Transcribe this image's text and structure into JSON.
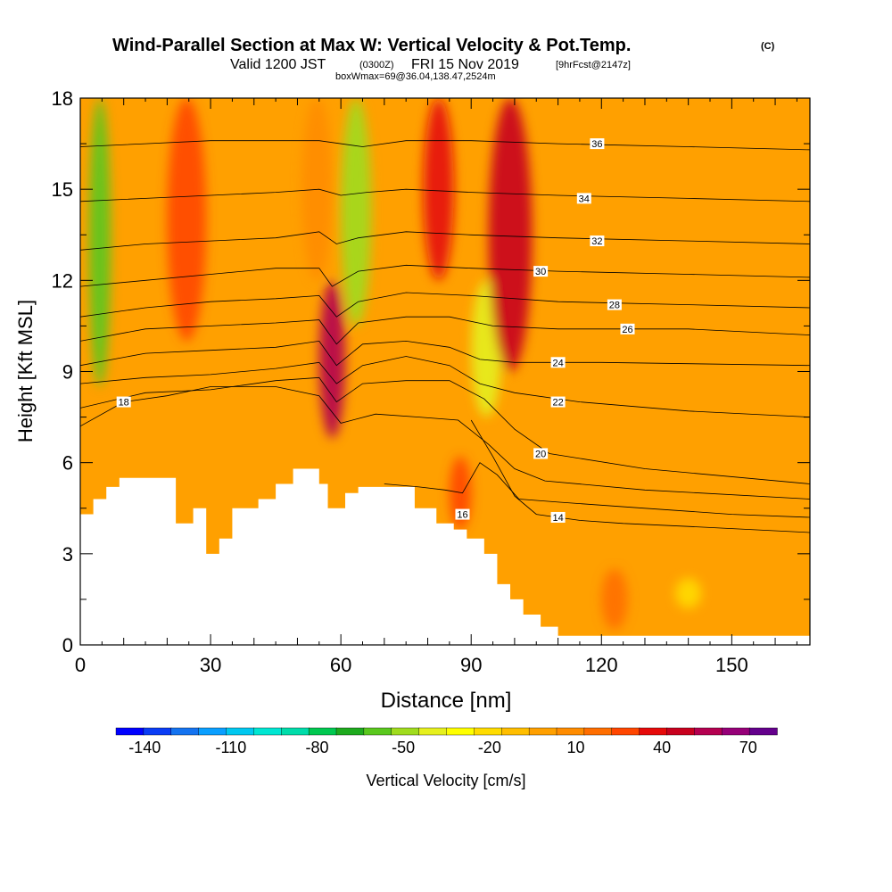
{
  "chart_data": {
    "type": "heatmap",
    "title": "Wind-Parallel Section at Max W: Vertical Velocity & Pot.Temp.",
    "title_mark": "(C)",
    "subtitle_parts": {
      "valid": "Valid 1200 JST",
      "utc": "(0300Z)",
      "date": "FRI 15 Nov 2019",
      "fcst": "[9hrFcst@2147z]"
    },
    "subtitle2": "boxWmax=69@36.04,138.47,2524m",
    "xlabel": "Distance [nm]",
    "ylabel": "Height [Kft MSL]",
    "xlim": [
      0,
      168
    ],
    "ylim": [
      0,
      18
    ],
    "x_ticks": [
      "0",
      "30",
      "60",
      "90",
      "120",
      "150"
    ],
    "x_tick_values": [
      0,
      30,
      60,
      90,
      120,
      150
    ],
    "y_ticks": [
      "0",
      "3",
      "6",
      "9",
      "12",
      "15",
      "18"
    ],
    "y_tick_values": [
      0,
      3,
      6,
      9,
      12,
      15,
      18
    ],
    "colorbar": {
      "label": "Vertical Velocity [cm/s]",
      "min": -150,
      "max": 80,
      "step": 10,
      "tick_labels": [
        "-140",
        "-110",
        "-80",
        "-50",
        "-20",
        "10",
        "40",
        "70"
      ],
      "tick_values": [
        -140,
        -110,
        -80,
        -50,
        -20,
        10,
        40,
        70
      ],
      "colors": [
        "#0000ff",
        "#0a3cf5",
        "#1473f0",
        "#0a9fff",
        "#00c8f0",
        "#00e6d2",
        "#00dcaa",
        "#00c850",
        "#1eaa1e",
        "#5ac81e",
        "#a0dc1e",
        "#e6f01e",
        "#ffff00",
        "#ffdc00",
        "#ffbe00",
        "#ffa000",
        "#ff8c00",
        "#ff6e00",
        "#ff4600",
        "#e60a0a",
        "#c8001e",
        "#b40050",
        "#960078",
        "#64008c"
      ]
    },
    "velocity_field": [
      {
        "x_range": [
          2,
          7
        ],
        "y_range": [
          8.5,
          18
        ],
        "value": -55
      },
      {
        "x_range": [
          20,
          29
        ],
        "y_range": [
          10,
          18
        ],
        "value": 35
      },
      {
        "x_range": [
          51,
          58
        ],
        "y_range": [
          12,
          18
        ],
        "value": 15
      },
      {
        "x_range": [
          55,
          61
        ],
        "y_range": [
          6.8,
          12
        ],
        "value": 65
      },
      {
        "x_range": [
          60,
          67
        ],
        "y_range": [
          10.5,
          18
        ],
        "value": -50
      },
      {
        "x_range": [
          79,
          86
        ],
        "y_range": [
          12,
          18
        ],
        "value": 40
      },
      {
        "x_range": [
          85,
          90
        ],
        "y_range": [
          3.8,
          6.2
        ],
        "value": 30
      },
      {
        "x_range": [
          90,
          97
        ],
        "y_range": [
          7.5,
          12
        ],
        "value": -40
      },
      {
        "x_range": [
          94,
          104
        ],
        "y_range": [
          9,
          18
        ],
        "value": 55
      },
      {
        "x_range": [
          120,
          126
        ],
        "y_range": [
          0.5,
          2.5
        ],
        "value": 20
      },
      {
        "x_range": [
          137,
          143
        ],
        "y_range": [
          1.2,
          2.2
        ],
        "value": -15
      }
    ],
    "terrain_height": [
      [
        0,
        4.3
      ],
      [
        3,
        4.8
      ],
      [
        6,
        5.2
      ],
      [
        9,
        5.5
      ],
      [
        20,
        5.5
      ],
      [
        22,
        4.0
      ],
      [
        26,
        4.5
      ],
      [
        29,
        3.0
      ],
      [
        32,
        3.5
      ],
      [
        35,
        4.5
      ],
      [
        41,
        4.8
      ],
      [
        45,
        5.3
      ],
      [
        49,
        5.8
      ],
      [
        55,
        5.3
      ],
      [
        57,
        4.5
      ],
      [
        61,
        5.0
      ],
      [
        64,
        5.2
      ],
      [
        74,
        5.2
      ],
      [
        77,
        4.5
      ],
      [
        82,
        4.0
      ],
      [
        86,
        3.8
      ],
      [
        89,
        3.5
      ],
      [
        93,
        3.0
      ],
      [
        96,
        2.0
      ],
      [
        99,
        1.5
      ],
      [
        102,
        1.0
      ],
      [
        106,
        0.6
      ],
      [
        110,
        0.3
      ],
      [
        168,
        0.3
      ]
    ],
    "theta_contours": [
      {
        "level": "14",
        "label_pos": [
          110,
          4.2
        ],
        "points": [
          [
            90,
            7.4
          ],
          [
            95,
            6.2
          ],
          [
            100,
            4.9
          ],
          [
            105,
            4.3
          ],
          [
            115,
            4.1
          ],
          [
            125,
            4.0
          ],
          [
            140,
            3.9
          ],
          [
            168,
            3.7
          ]
        ]
      },
      {
        "level": "16",
        "label_pos": [
          88,
          4.3
        ],
        "points": [
          [
            70,
            5.3
          ],
          [
            78,
            5.2
          ],
          [
            84,
            5.1
          ],
          [
            88,
            5.0
          ],
          [
            92,
            6.0
          ],
          [
            96,
            5.6
          ],
          [
            101,
            4.8
          ],
          [
            110,
            4.7
          ],
          [
            130,
            4.5
          ],
          [
            150,
            4.3
          ],
          [
            168,
            4.2
          ]
        ]
      },
      {
        "level": "18",
        "label_pos": [
          10,
          8.0
        ],
        "points": [
          [
            0,
            7.2
          ],
          [
            10,
            8.0
          ],
          [
            20,
            8.2
          ],
          [
            30,
            8.5
          ],
          [
            45,
            8.5
          ],
          [
            55,
            8.2
          ],
          [
            60,
            7.3
          ],
          [
            68,
            7.6
          ],
          [
            78,
            7.5
          ],
          [
            87,
            7.4
          ],
          [
            94,
            6.6
          ],
          [
            100,
            5.8
          ],
          [
            107,
            5.4
          ],
          [
            130,
            5.1
          ],
          [
            168,
            4.8
          ]
        ]
      },
      {
        "level": "20",
        "label_pos": [
          106,
          6.3
        ],
        "points": [
          [
            0,
            7.8
          ],
          [
            15,
            8.3
          ],
          [
            30,
            8.4
          ],
          [
            45,
            8.7
          ],
          [
            55,
            8.8
          ],
          [
            59,
            8.0
          ],
          [
            65,
            8.6
          ],
          [
            75,
            8.7
          ],
          [
            85,
            8.7
          ],
          [
            93,
            8.1
          ],
          [
            100,
            7.1
          ],
          [
            108,
            6.3
          ],
          [
            130,
            5.8
          ],
          [
            168,
            5.3
          ]
        ]
      },
      {
        "level": "22",
        "label_pos": [
          110,
          8.0
        ],
        "points": [
          [
            0,
            8.6
          ],
          [
            15,
            8.8
          ],
          [
            30,
            8.9
          ],
          [
            45,
            9.1
          ],
          [
            55,
            9.3
          ],
          [
            59,
            8.6
          ],
          [
            65,
            9.2
          ],
          [
            75,
            9.5
          ],
          [
            85,
            9.2
          ],
          [
            92,
            8.6
          ],
          [
            100,
            8.3
          ],
          [
            115,
            8.0
          ],
          [
            140,
            7.7
          ],
          [
            168,
            7.5
          ]
        ]
      },
      {
        "level": "24",
        "label_pos": [
          110,
          9.3
        ],
        "points": [
          [
            0,
            9.2
          ],
          [
            15,
            9.6
          ],
          [
            30,
            9.7
          ],
          [
            45,
            9.8
          ],
          [
            55,
            10.0
          ],
          [
            59,
            9.2
          ],
          [
            65,
            9.9
          ],
          [
            75,
            10.0
          ],
          [
            85,
            9.8
          ],
          [
            92,
            9.4
          ],
          [
            100,
            9.3
          ],
          [
            120,
            9.3
          ],
          [
            168,
            9.2
          ]
        ]
      },
      {
        "level": "26",
        "label_pos": [
          126,
          10.4
        ],
        "points": [
          [
            0,
            10.0
          ],
          [
            15,
            10.4
          ],
          [
            30,
            10.5
          ],
          [
            45,
            10.6
          ],
          [
            55,
            10.7
          ],
          [
            59,
            9.9
          ],
          [
            64,
            10.6
          ],
          [
            75,
            10.8
          ],
          [
            85,
            10.8
          ],
          [
            95,
            10.5
          ],
          [
            110,
            10.4
          ],
          [
            140,
            10.4
          ],
          [
            168,
            10.2
          ]
        ]
      },
      {
        "level": "28",
        "label_pos": [
          123,
          11.2
        ],
        "points": [
          [
            0,
            10.8
          ],
          [
            15,
            11.1
          ],
          [
            30,
            11.3
          ],
          [
            45,
            11.4
          ],
          [
            55,
            11.5
          ],
          [
            59,
            10.8
          ],
          [
            64,
            11.3
          ],
          [
            75,
            11.6
          ],
          [
            90,
            11.5
          ],
          [
            110,
            11.3
          ],
          [
            140,
            11.2
          ],
          [
            168,
            11.1
          ]
        ]
      },
      {
        "level": "30",
        "label_pos": [
          106,
          12.3
        ],
        "points": [
          [
            0,
            11.8
          ],
          [
            15,
            12.0
          ],
          [
            30,
            12.2
          ],
          [
            45,
            12.4
          ],
          [
            55,
            12.4
          ],
          [
            58,
            11.8
          ],
          [
            64,
            12.3
          ],
          [
            75,
            12.5
          ],
          [
            90,
            12.4
          ],
          [
            110,
            12.3
          ],
          [
            140,
            12.2
          ],
          [
            168,
            12.1
          ]
        ]
      },
      {
        "level": "32",
        "label_pos": [
          119,
          13.3
        ],
        "points": [
          [
            0,
            13.0
          ],
          [
            15,
            13.2
          ],
          [
            30,
            13.3
          ],
          [
            45,
            13.4
          ],
          [
            55,
            13.6
          ],
          [
            59,
            13.2
          ],
          [
            64,
            13.4
          ],
          [
            75,
            13.6
          ],
          [
            90,
            13.5
          ],
          [
            110,
            13.4
          ],
          [
            140,
            13.3
          ],
          [
            168,
            13.2
          ]
        ]
      },
      {
        "level": "34",
        "label_pos": [
          116,
          14.7
        ],
        "points": [
          [
            0,
            14.6
          ],
          [
            15,
            14.7
          ],
          [
            30,
            14.8
          ],
          [
            45,
            14.9
          ],
          [
            55,
            15.0
          ],
          [
            60,
            14.8
          ],
          [
            66,
            14.9
          ],
          [
            75,
            15.0
          ],
          [
            90,
            14.9
          ],
          [
            110,
            14.8
          ],
          [
            140,
            14.7
          ],
          [
            168,
            14.6
          ]
        ]
      },
      {
        "level": "36",
        "label_pos": [
          119,
          16.5
        ],
        "points": [
          [
            0,
            16.4
          ],
          [
            15,
            16.5
          ],
          [
            30,
            16.6
          ],
          [
            45,
            16.6
          ],
          [
            55,
            16.6
          ],
          [
            65,
            16.4
          ],
          [
            75,
            16.6
          ],
          [
            90,
            16.6
          ],
          [
            110,
            16.5
          ],
          [
            140,
            16.4
          ],
          [
            168,
            16.3
          ]
        ]
      }
    ]
  }
}
